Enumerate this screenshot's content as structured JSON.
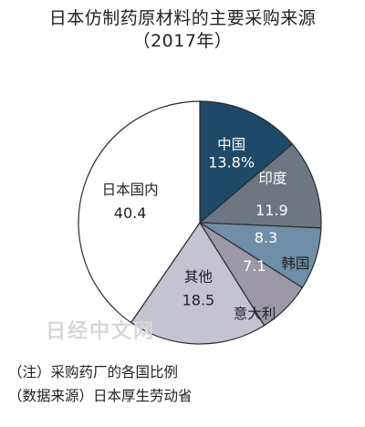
{
  "title_line1": "日本仿制药原材料的主要采购来源",
  "title_line2": "（2017年）",
  "watermark": "日经中文网",
  "note": "（注）采购药厂的各国比例",
  "source": "（数据来源）日本厚生劳动省",
  "chart_data": {
    "type": "pie",
    "slices": [
      {
        "label": "中国",
        "value": 13.8,
        "display": "13.8%",
        "color": "#1e4968",
        "text_color": "#ffffff"
      },
      {
        "label": "印度",
        "value": 11.9,
        "display": "11.9",
        "color": "#6e7684",
        "text_color": "#ffffff"
      },
      {
        "label": "韩国",
        "value": 8.3,
        "display": "8.3",
        "color": "#6f8ea7",
        "text_color": "#ffffff"
      },
      {
        "label": "意大利",
        "value": 7.1,
        "display": "7.1",
        "color": "#9c98a7",
        "text_color": "#ffffff"
      },
      {
        "label": "其他",
        "value": 18.5,
        "display": "18.5",
        "color": "#c4c3d1",
        "text_color": "#222222"
      },
      {
        "label": "日本国内",
        "value": 40.4,
        "display": "40.4",
        "color": "#ffffff",
        "text_color": "#222222"
      }
    ]
  }
}
